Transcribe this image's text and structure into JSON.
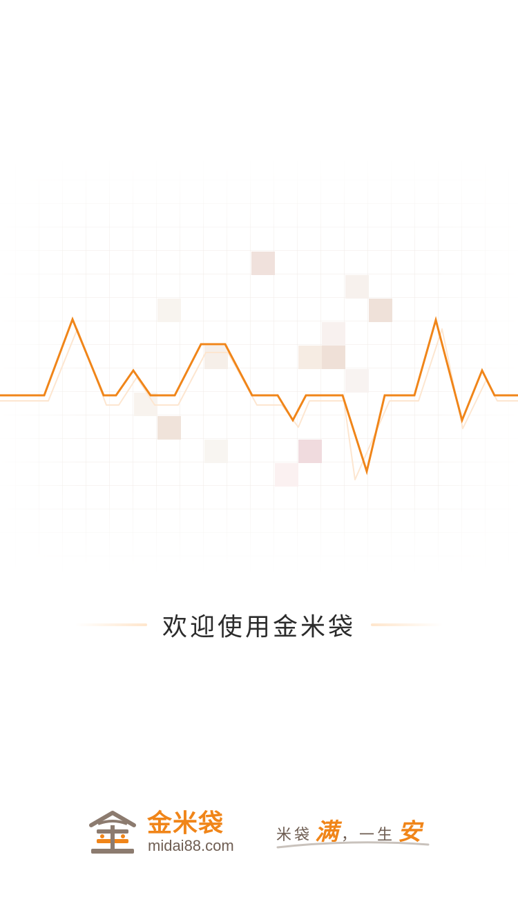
{
  "welcome": {
    "text": "欢迎使用金米袋"
  },
  "brand": {
    "name": "金米袋",
    "domain": "midai88.com",
    "slogan": {
      "part1": "米袋",
      "part2": "满",
      "part3": "，一生",
      "part4": "安"
    }
  },
  "colors": {
    "accent": "#f08519",
    "brown": "#6e5d52",
    "text": "#2b2b2b"
  },
  "icons": {
    "logo": "brand-logo-icon"
  }
}
